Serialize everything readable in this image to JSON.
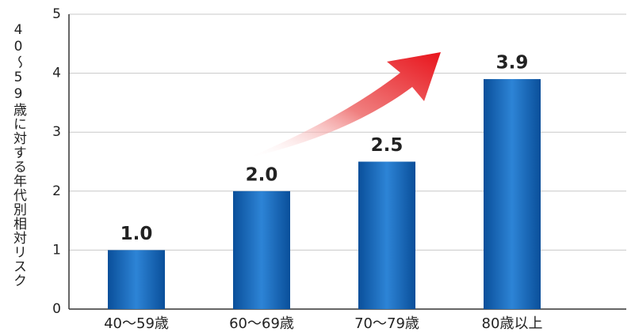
{
  "chart_data": {
    "type": "bar",
    "ylabel": "40〜59歳に対する年代別相対リスク",
    "categories": [
      "40〜59歳",
      "60〜69歳",
      "70〜79歳",
      "80歳以上"
    ],
    "values": [
      1.0,
      2.0,
      2.5,
      3.9
    ],
    "value_labels": [
      "1.0",
      "2.0",
      "2.5",
      "3.9"
    ],
    "color": "#0a5fb4",
    "ylim": [
      0,
      5
    ],
    "yticks": [
      0,
      1,
      2,
      3,
      4,
      5
    ],
    "grid": true
  }
}
